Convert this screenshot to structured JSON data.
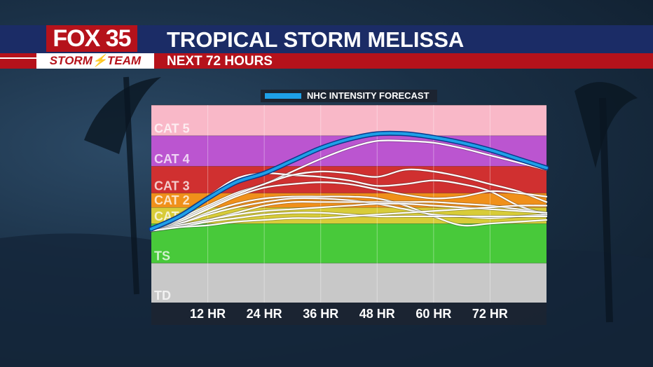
{
  "header": {
    "logo_top": "FOX 35",
    "logo_bottom": "STORM⚡TEAM",
    "title": "TROPICAL STORM MELISSA",
    "subtitle": "NEXT 72 HOURS"
  },
  "colors": {
    "header_blue": "#1b2c66",
    "header_red": "#b5121b",
    "nhc_line": "#1ea0e8",
    "model_lines": "#ffffff"
  },
  "chart_data": {
    "type": "line",
    "legend": "NHC INTENSITY FORECAST",
    "legend_position": "top-center",
    "x_ticks": [
      "12 HR",
      "24 HR",
      "36 HR",
      "48 HR",
      "60 HR",
      "72 HR"
    ],
    "xlim": [
      0,
      84
    ],
    "ylim": [
      0,
      11
    ],
    "y_axis": "intensity category",
    "categories": [
      {
        "label": "TD",
        "from": 0,
        "to": 2.2,
        "color": "#c8c8c8"
      },
      {
        "label": "TS",
        "from": 2.2,
        "to": 4.4,
        "color": "#48c93a"
      },
      {
        "label": "CAT 1",
        "from": 4.4,
        "to": 5.3,
        "color": "#d8cc38"
      },
      {
        "label": "CAT 2",
        "from": 5.3,
        "to": 6.1,
        "color": "#f0901a"
      },
      {
        "label": "CAT 3",
        "from": 6.1,
        "to": 7.6,
        "color": "#d03030"
      },
      {
        "label": "CAT 4",
        "from": 7.6,
        "to": 9.3,
        "color": "#bb55d0"
      },
      {
        "label": "CAT 5",
        "from": 9.3,
        "to": 11.0,
        "color": "#f9b8c8"
      }
    ],
    "series": [
      {
        "x": [
          0,
          6,
          12,
          18,
          24,
          30,
          36,
          42,
          48,
          54,
          60,
          66,
          72,
          78,
          84
        ],
        "y": [
          4.1,
          4.7,
          5.4,
          6.1,
          6.6,
          7.3,
          8.0,
          8.6,
          9.0,
          9.0,
          8.9,
          8.6,
          8.2,
          7.8,
          7.4
        ]
      },
      {
        "x": [
          0,
          6,
          12,
          18,
          24,
          30,
          36,
          42,
          48,
          54,
          60,
          66,
          72,
          78,
          84
        ],
        "y": [
          4.1,
          4.9,
          5.9,
          6.9,
          7.2,
          7.1,
          7.0,
          6.8,
          6.5,
          6.6,
          6.8,
          6.6,
          6.2,
          5.4,
          4.9
        ]
      },
      {
        "x": [
          0,
          6,
          12,
          18,
          24,
          30,
          36,
          42,
          48,
          54,
          60,
          66,
          72,
          78,
          84
        ],
        "y": [
          4.1,
          4.6,
          5.3,
          6.0,
          6.6,
          7.1,
          7.3,
          7.2,
          7.0,
          7.4,
          7.3,
          7.0,
          6.6,
          6.2,
          5.6
        ]
      },
      {
        "x": [
          0,
          6,
          12,
          18,
          24,
          30,
          36,
          42,
          48,
          54,
          60,
          66,
          72,
          78,
          84
        ],
        "y": [
          4.0,
          4.5,
          5.2,
          5.9,
          6.4,
          6.6,
          6.7,
          6.6,
          6.3,
          6.0,
          5.8,
          5.9,
          6.2,
          6.1,
          5.9
        ]
      },
      {
        "x": [
          0,
          6,
          12,
          18,
          24,
          30,
          36,
          42,
          48,
          54,
          60,
          66,
          72,
          78,
          84
        ],
        "y": [
          4.0,
          4.4,
          5.0,
          5.5,
          5.8,
          5.9,
          5.9,
          5.9,
          5.8,
          5.4,
          4.8,
          4.3,
          4.4,
          4.5,
          4.6
        ]
      },
      {
        "x": [
          0,
          6,
          12,
          18,
          24,
          30,
          36,
          42,
          48,
          54,
          60,
          66,
          72,
          78,
          84
        ],
        "y": [
          4.0,
          4.4,
          4.9,
          5.3,
          5.6,
          5.8,
          5.8,
          5.7,
          5.5,
          5.2,
          4.9,
          4.8,
          4.7,
          4.8,
          4.9
        ]
      },
      {
        "x": [
          0,
          6,
          12,
          18,
          24,
          30,
          36,
          42,
          48,
          54,
          60,
          66,
          72,
          78,
          84
        ],
        "y": [
          4.0,
          4.3,
          4.6,
          5.0,
          5.4,
          5.6,
          5.6,
          5.6,
          5.6,
          5.6,
          5.6,
          5.5,
          5.4,
          5.2,
          5.0
        ]
      },
      {
        "x": [
          0,
          6,
          12,
          18,
          24,
          30,
          36,
          42,
          48,
          54,
          60,
          66,
          72,
          78,
          84
        ],
        "y": [
          4.0,
          4.3,
          4.6,
          4.9,
          5.1,
          5.2,
          5.3,
          5.4,
          5.5,
          5.5,
          5.4,
          5.3,
          5.2,
          5.1,
          5.0
        ]
      },
      {
        "x": [
          0,
          6,
          12,
          18,
          24,
          30,
          36,
          42,
          48,
          54,
          60,
          66,
          72,
          78,
          84
        ],
        "y": [
          4.0,
          4.2,
          4.5,
          4.7,
          4.9,
          5.0,
          5.0,
          4.9,
          4.8,
          4.8,
          4.8,
          4.8,
          4.8,
          4.8,
          4.8
        ]
      },
      {
        "x": [
          0,
          6,
          12,
          18,
          24,
          30,
          36,
          42,
          48,
          54,
          60,
          66,
          72,
          78,
          84
        ],
        "y": [
          4.0,
          4.2,
          4.3,
          4.5,
          4.6,
          4.7,
          4.7,
          4.8,
          4.9,
          5.0,
          5.1,
          5.2,
          5.3,
          5.4,
          5.4
        ]
      },
      {
        "name": "NHC INTENSITY FORECAST",
        "nhc": true,
        "x": [
          0,
          6,
          12,
          18,
          24,
          30,
          36,
          42,
          48,
          54,
          60,
          66,
          72,
          78,
          84
        ],
        "y": [
          4.1,
          4.8,
          5.8,
          6.7,
          7.2,
          7.9,
          8.6,
          9.1,
          9.4,
          9.4,
          9.2,
          8.9,
          8.5,
          8.0,
          7.5
        ]
      }
    ]
  }
}
